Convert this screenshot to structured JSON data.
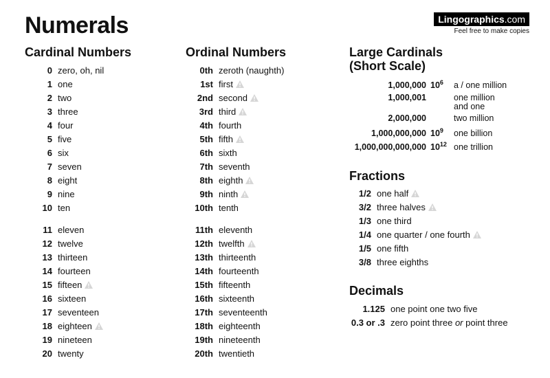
{
  "title": "Numerals",
  "brand": {
    "name": "Lingographics",
    "domain": ".com",
    "subtitle": "Feel free to make copies"
  },
  "cardinal": {
    "title": "Cardinal Numbers",
    "group1": [
      {
        "n": "0",
        "w": "zero, oh, nil"
      },
      {
        "n": "1",
        "w": "one"
      },
      {
        "n": "2",
        "w": "two"
      },
      {
        "n": "3",
        "w": "three"
      },
      {
        "n": "4",
        "w": "four"
      },
      {
        "n": "5",
        "w": "five"
      },
      {
        "n": "6",
        "w": "six"
      },
      {
        "n": "7",
        "w": "seven"
      },
      {
        "n": "8",
        "w": "eight"
      },
      {
        "n": "9",
        "w": "nine"
      },
      {
        "n": "10",
        "w": "ten"
      }
    ],
    "group2": [
      {
        "n": "11",
        "w": "eleven"
      },
      {
        "n": "12",
        "w": "twelve"
      },
      {
        "n": "13",
        "w": "thirteen"
      },
      {
        "n": "14",
        "w": "fourteen"
      },
      {
        "n": "15",
        "w": "fifteen",
        "warn": true
      },
      {
        "n": "16",
        "w": "sixteen"
      },
      {
        "n": "17",
        "w": "seventeen"
      },
      {
        "n": "18",
        "w": "eighteen",
        "warn": true
      },
      {
        "n": "19",
        "w": "nineteen"
      },
      {
        "n": "20",
        "w": "twenty"
      }
    ]
  },
  "ordinal": {
    "title": "Ordinal Numbers",
    "group1": [
      {
        "n": "0th",
        "w": "zeroth (naughth)"
      },
      {
        "n": "1st",
        "w": "first",
        "warn": true
      },
      {
        "n": "2nd",
        "w": "second",
        "warn": true
      },
      {
        "n": "3rd",
        "w": "third",
        "warn": true
      },
      {
        "n": "4th",
        "w": "fourth"
      },
      {
        "n": "5th",
        "w": "fifth",
        "warn": true
      },
      {
        "n": "6th",
        "w": "sixth"
      },
      {
        "n": "7th",
        "w": "seventh"
      },
      {
        "n": "8th",
        "w": "eighth",
        "warn": true
      },
      {
        "n": "9th",
        "w": "ninth",
        "warn": true
      },
      {
        "n": "10th",
        "w": "tenth"
      }
    ],
    "group2": [
      {
        "n": "11th",
        "w": "eleventh"
      },
      {
        "n": "12th",
        "w": "twelfth",
        "warn": true
      },
      {
        "n": "13th",
        "w": "thirteenth"
      },
      {
        "n": "14th",
        "w": "fourteenth"
      },
      {
        "n": "15th",
        "w": "fifteenth"
      },
      {
        "n": "16th",
        "w": "sixteenth"
      },
      {
        "n": "17th",
        "w": "seventeenth"
      },
      {
        "n": "18th",
        "w": "eighteenth"
      },
      {
        "n": "19th",
        "w": "nineteenth"
      },
      {
        "n": "20th",
        "w": "twentieth"
      }
    ]
  },
  "large": {
    "title": "Large Cardinals\n(Short Scale)",
    "rows": [
      {
        "n": "1,000,000",
        "p_base": "10",
        "p_exp": "6",
        "w": "a / one million"
      },
      {
        "n": "1,000,001",
        "w": "one million and one",
        "tall": true
      },
      {
        "n": "2,000,000",
        "w": "two million"
      },
      {
        "n": "1,000,000,000",
        "p_base": "10",
        "p_exp": "9",
        "w": "one billion"
      },
      {
        "n": "1,000,000,000,000",
        "p_base": "10",
        "p_exp": "12",
        "w": "one trillion"
      }
    ]
  },
  "fractions": {
    "title": "Fractions",
    "rows": [
      {
        "f": "1/2",
        "w": "one half",
        "warn": true
      },
      {
        "f": "3/2",
        "w": "three halves",
        "warn": true
      },
      {
        "f": "1/3",
        "w": "one third"
      },
      {
        "f": "1/4",
        "w": "one quarter / one fourth",
        "warn": true
      },
      {
        "f": "1/5",
        "w": "one fifth"
      },
      {
        "f": "3/8",
        "w": "three eighths"
      }
    ]
  },
  "decimals": {
    "title": "Decimals",
    "rows": [
      {
        "d": "1.125",
        "w": "one point one two five"
      },
      {
        "d": "0.3 or .3",
        "w_html": "zero point three <em class='or'>or</em> point three"
      }
    ]
  }
}
